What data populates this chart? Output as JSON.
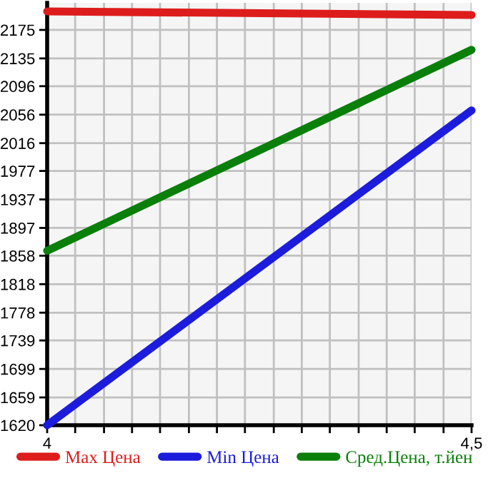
{
  "chart_data": {
    "type": "line",
    "x": [
      4,
      4.5
    ],
    "series": [
      {
        "name": "Max Цена",
        "color": "#dd1c1c",
        "values": [
          2201,
          2196
        ]
      },
      {
        "name": "Min Цена",
        "color": "#1c1cdd",
        "values": [
          1620,
          2062
        ]
      },
      {
        "name": "Сред.Цена, т.йен",
        "color": "#0a7f0a",
        "values": [
          1865,
          2147
        ]
      }
    ],
    "xlim": [
      4,
      4.5
    ],
    "xticks": [
      {
        "value": 4,
        "label": "4"
      },
      {
        "value": 4.033,
        "label": null
      },
      {
        "value": 4.067,
        "label": null
      },
      {
        "value": 4.1,
        "label": null
      },
      {
        "value": 4.133,
        "label": null
      },
      {
        "value": 4.167,
        "label": null
      },
      {
        "value": 4.2,
        "label": null
      },
      {
        "value": 4.233,
        "label": null
      },
      {
        "value": 4.267,
        "label": null
      },
      {
        "value": 4.3,
        "label": null
      },
      {
        "value": 4.333,
        "label": null
      },
      {
        "value": 4.367,
        "label": null
      },
      {
        "value": 4.4,
        "label": null
      },
      {
        "value": 4.433,
        "label": null
      },
      {
        "value": 4.467,
        "label": null
      },
      {
        "value": 4.5,
        "label": "4,5"
      }
    ],
    "ylim": [
      1620,
      2213
    ],
    "yticks": [
      1620,
      1659,
      1699,
      1739,
      1778,
      1818,
      1858,
      1897,
      1937,
      1977,
      2016,
      2056,
      2096,
      2135,
      2175
    ],
    "grid": true,
    "legend": "bottom",
    "marker": "none",
    "line_style": "solid"
  }
}
